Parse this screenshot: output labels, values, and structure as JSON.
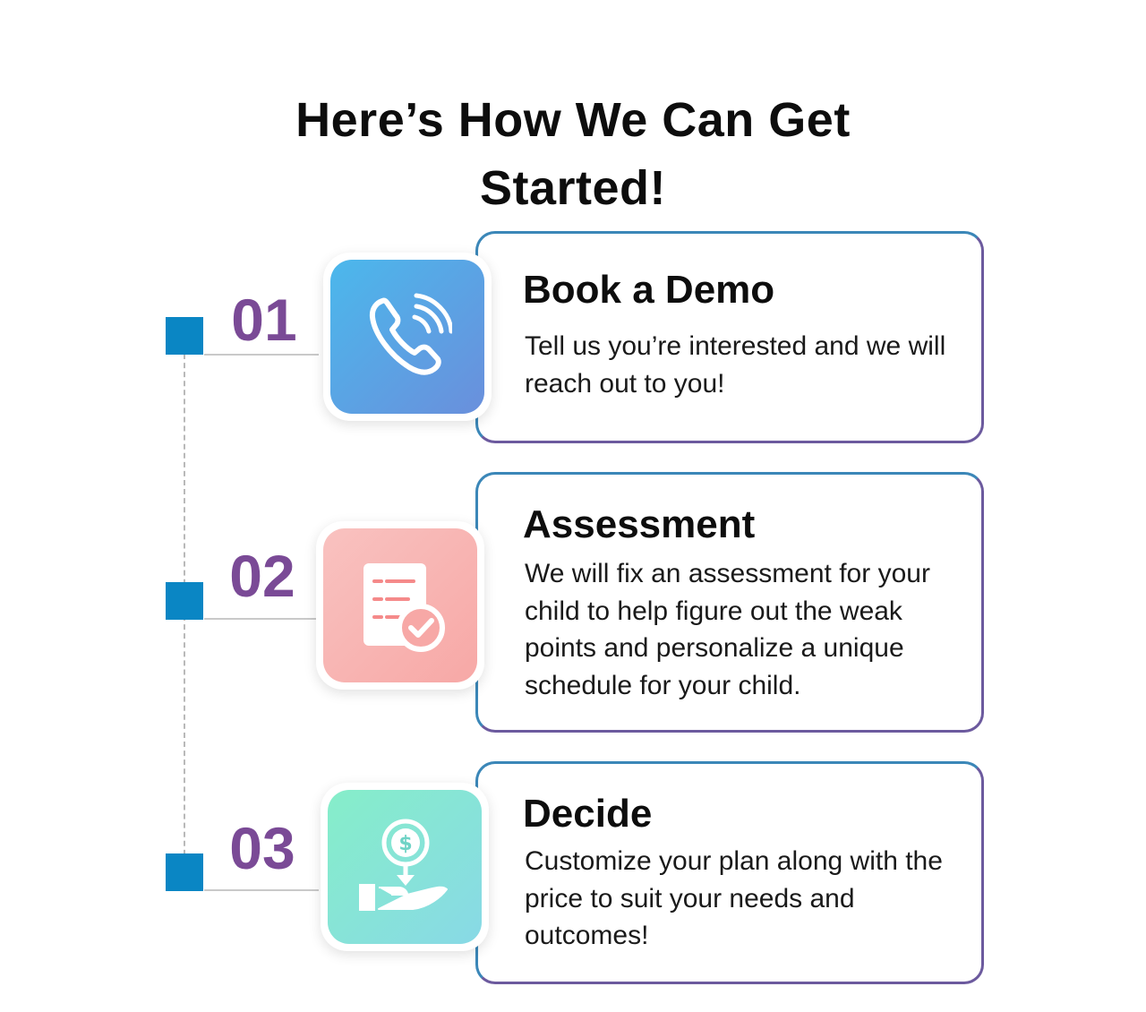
{
  "title": {
    "line1": "Here’s How We Can Get",
    "line2": "Started!"
  },
  "steps": [
    {
      "number": "01",
      "title": "Book a Demo",
      "description": "Tell us you’re interested and we will reach out to you!",
      "icon": "phone-icon",
      "tile_color": "#5aa6e6"
    },
    {
      "number": "02",
      "title": "Assessment",
      "description": "We will fix an assessment for your child to help figure out the weak points and personalize a unique schedule for your child.",
      "icon": "checklist-icon",
      "tile_color": "#f8b5b3"
    },
    {
      "number": "03",
      "title": "Decide",
      "description": "Customize your plan along with the price to suit your needs and outcomes!",
      "icon": "money-hand-icon",
      "tile_color": "#87e4d6"
    }
  ],
  "colors": {
    "marker": "#0a86c4",
    "number": "#7a4a96",
    "card_border": "#6c5a9e"
  }
}
